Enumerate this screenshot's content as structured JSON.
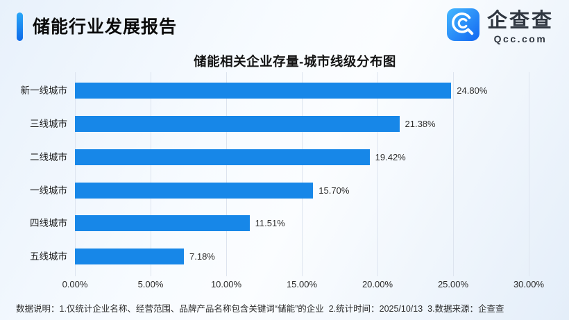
{
  "header": {
    "report_title": "储能行业发展报告"
  },
  "logo": {
    "name": "企查查",
    "domain": "Qcc.com"
  },
  "chart_data": {
    "type": "bar",
    "orientation": "horizontal",
    "title": "储能相关企业存量-城市线级分布图",
    "categories": [
      "新一线城市",
      "三线城市",
      "二线城市",
      "一线城市",
      "四线城市",
      "五线城市"
    ],
    "values": [
      24.8,
      21.38,
      19.42,
      15.7,
      11.51,
      7.18
    ],
    "value_labels": [
      "24.80%",
      "21.38%",
      "19.42%",
      "15.70%",
      "11.51%",
      "7.18%"
    ],
    "x_ticks": [
      "0.00%",
      "5.00%",
      "10.00%",
      "15.00%",
      "20.00%",
      "25.00%",
      "30.00%"
    ],
    "xlim": [
      0,
      30
    ],
    "xlabel": "",
    "ylabel": "",
    "grid": true,
    "legend": false,
    "bar_color": "#1787e8"
  },
  "footer": {
    "note": "数据说明：1.仅统计企业名称、经营范围、品牌产品名称包含关键词“储能”的企业  2.统计时间：2025/10/13  3.数据来源：企查查"
  },
  "colors": {
    "accent": "#1585ec",
    "bar": "#1787e8",
    "background_tint": "#e8f1fb",
    "gridline": "#dde4ef"
  }
}
